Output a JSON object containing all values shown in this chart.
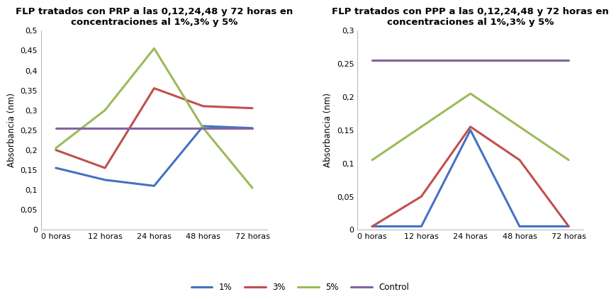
{
  "title_prp": "FLP tratados con PRP a las 0,12,24,48 y 72 horas en\nconcentraciones al 1%,3% y 5%",
  "title_ppp": "FLP tratados con PPP a las 0,12,24,48 y 72 horas en\nconcentraciones al 1%,3% y 5%",
  "ylabel": "Absorbancia (nm)",
  "x_labels": [
    "0 horas",
    "12 horas",
    "24 horas",
    "48 horas",
    "72 horas"
  ],
  "x_vals": [
    0,
    1,
    2,
    3,
    4
  ],
  "prp_1pct": [
    0.155,
    0.125,
    0.11,
    0.26,
    0.255
  ],
  "prp_3pct": [
    0.2,
    0.155,
    0.355,
    0.31,
    0.305
  ],
  "prp_5pct": [
    0.205,
    0.3,
    0.455,
    0.255,
    0.105
  ],
  "prp_control": [
    0.255,
    0.255,
    0.255,
    0.255,
    0.255
  ],
  "ppp_1pct": [
    0.005,
    0.005,
    0.15,
    0.005,
    0.005
  ],
  "ppp_3pct": [
    0.005,
    0.05,
    0.155,
    0.105,
    0.005
  ],
  "ppp_5pct": [
    0.105,
    0.155,
    0.205,
    0.155,
    0.105
  ],
  "ppp_control": [
    0.255,
    0.255,
    0.255,
    0.255,
    0.255
  ],
  "prp_ylim": [
    0,
    0.5
  ],
  "prp_yticks": [
    0,
    0.05,
    0.1,
    0.15,
    0.2,
    0.25,
    0.3,
    0.35,
    0.4,
    0.45,
    0.5
  ],
  "ppp_ylim": [
    0,
    0.3
  ],
  "ppp_yticks": [
    0,
    0.05,
    0.1,
    0.15,
    0.2,
    0.25,
    0.3
  ],
  "color_1pct": "#4472C4",
  "color_3pct": "#C0504D",
  "color_5pct": "#9BBB59",
  "color_control": "#8064A2",
  "legend_labels": [
    "1%",
    "3%",
    "5%",
    "Control"
  ],
  "title_fontsize": 9.5,
  "axis_label_fontsize": 8.5,
  "tick_fontsize": 8,
  "legend_fontsize": 8.5,
  "line_width": 2.2,
  "bg_color": "#FFFFFF"
}
